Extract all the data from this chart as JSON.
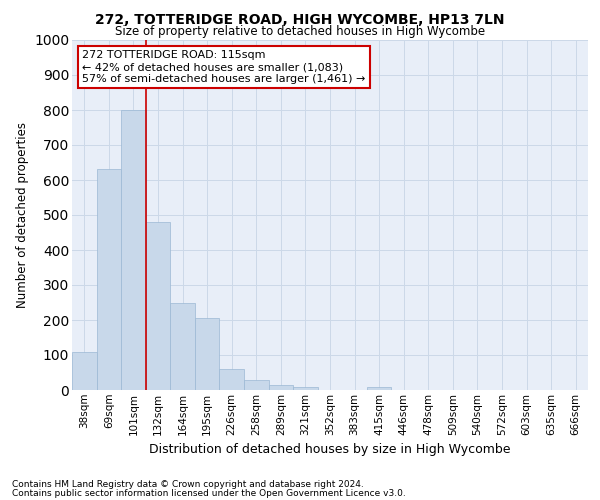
{
  "title1": "272, TOTTERIDGE ROAD, HIGH WYCOMBE, HP13 7LN",
  "title2": "Size of property relative to detached houses in High Wycombe",
  "xlabel": "Distribution of detached houses by size in High Wycombe",
  "ylabel": "Number of detached properties",
  "footnote1": "Contains HM Land Registry data © Crown copyright and database right 2024.",
  "footnote2": "Contains public sector information licensed under the Open Government Licence v3.0.",
  "bar_labels": [
    "38sqm",
    "69sqm",
    "101sqm",
    "132sqm",
    "164sqm",
    "195sqm",
    "226sqm",
    "258sqm",
    "289sqm",
    "321sqm",
    "352sqm",
    "383sqm",
    "415sqm",
    "446sqm",
    "478sqm",
    "509sqm",
    "540sqm",
    "572sqm",
    "603sqm",
    "635sqm",
    "666sqm"
  ],
  "bar_values": [
    110,
    630,
    800,
    480,
    250,
    205,
    60,
    30,
    15,
    10,
    0,
    0,
    10,
    0,
    0,
    0,
    0,
    0,
    0,
    0,
    0
  ],
  "bar_color": "#c8d8ea",
  "bar_edgecolor": "#9bb8d4",
  "bar_width": 1.0,
  "ylim": [
    0,
    1000
  ],
  "yticks": [
    0,
    100,
    200,
    300,
    400,
    500,
    600,
    700,
    800,
    900,
    1000
  ],
  "red_line_x": 2.5,
  "red_line_color": "#cc0000",
  "annotation_title": "272 TOTTERIDGE ROAD: 115sqm",
  "annotation_line1": "← 42% of detached houses are smaller (1,083)",
  "annotation_line2": "57% of semi-detached houses are larger (1,461) →",
  "annotation_box_color": "#ffffff",
  "annotation_border_color": "#cc0000",
  "grid_color": "#ccd8e8",
  "plot_background": "#e8eef8"
}
